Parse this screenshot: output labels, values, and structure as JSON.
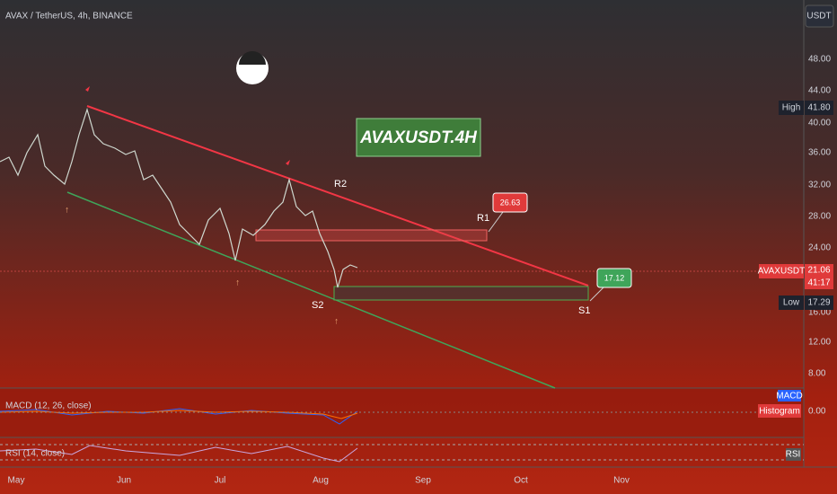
{
  "header": {
    "symbol": "AVAX / TetherUS, 4h, BINANCE",
    "currency": "USDT"
  },
  "price_axis": {
    "labels": [
      "48.00",
      "44.00",
      "40.00",
      "36.00",
      "32.00",
      "28.00",
      "24.00",
      "16.00",
      "12.00",
      "8.00"
    ],
    "high": {
      "label": "High",
      "value": "41.80"
    },
    "last": {
      "symbol": "AVAXUSDT",
      "value": "21.06",
      "countdown": "41:17"
    },
    "low": {
      "label": "Low",
      "value": "17.29"
    }
  },
  "annotations": {
    "banner": "AVAXUSDT.4H",
    "r2": "R2",
    "r1": "R1",
    "s1": "S1",
    "s2": "S2",
    "r1_price": "26.63",
    "s1_price": "17.12"
  },
  "macd": {
    "title": "MACD (12, 26, close)",
    "tag_macd": "MACD",
    "tag_hist": "Histogram",
    "zero": "0.00"
  },
  "rsi": {
    "title": "RSI (14, close)",
    "tag": "RSI"
  },
  "time_axis": [
    "May",
    "Jun",
    "Jul",
    "Aug",
    "Sep",
    "Oct",
    "Nov"
  ]
}
